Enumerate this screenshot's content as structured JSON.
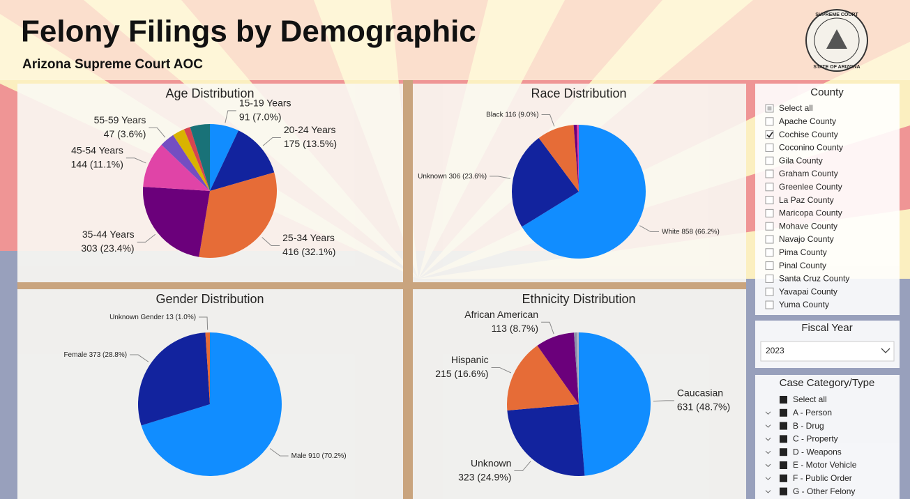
{
  "header": {
    "title": "Felony Filings by Demographic",
    "subtitle": "Arizona Supreme Court AOC",
    "seal_top": "SUPREME COURT",
    "seal_bottom": "STATE OF ARIZONA"
  },
  "chart_data": [
    {
      "type": "pie",
      "title": "Age Distribution",
      "categories": [
        "15-19 Years",
        "20-24 Years",
        "25-34 Years",
        "35-44 Years",
        "45-54 Years",
        "55-59 Years",
        null,
        null,
        null
      ],
      "values": [
        91,
        175,
        416,
        303,
        144,
        47,
        38,
        20,
        62
      ],
      "value_labels": [
        "91 (7.0%)",
        "175 (13.5%)",
        "416 (32.1%)",
        "303 (23.4%)",
        "144 (11.1%)",
        "47 (3.6%)",
        null,
        null,
        null
      ],
      "colors": [
        "#118DFF",
        "#12239E",
        "#E66C37",
        "#6B007B",
        "#E044A7",
        "#744EC2",
        "#D9B300",
        "#D64550",
        "#197278"
      ]
    },
    {
      "type": "pie",
      "title": "Race Distribution",
      "categories": [
        "White",
        "Unknown",
        "Black",
        null,
        null
      ],
      "values": [
        858,
        306,
        116,
        10,
        6
      ],
      "value_labels": [
        "858 (66.2%)",
        "306 (23.6%)",
        "116 (9.0%)",
        null,
        null
      ],
      "colors": [
        "#118DFF",
        "#12239E",
        "#E66C37",
        "#6B007B",
        "#E044A7"
      ]
    },
    {
      "type": "pie",
      "title": "Gender Distribution",
      "categories": [
        "Male",
        "Female",
        "Unknown Gender"
      ],
      "values": [
        910,
        373,
        13
      ],
      "value_labels": [
        "910 (70.2%)",
        "373 (28.8%)",
        "13 (1.0%)"
      ],
      "colors": [
        "#118DFF",
        "#12239E",
        "#E66C37"
      ]
    },
    {
      "type": "pie",
      "title": "Ethnicity Distribution",
      "categories": [
        "Caucasian",
        "Unknown",
        "Hispanic",
        "African American",
        null,
        null
      ],
      "values": [
        631,
        323,
        215,
        113,
        8,
        6
      ],
      "value_labels": [
        "631 (48.7%)",
        "323 (24.9%)",
        "215 (16.6%)",
        "113 (8.7%)",
        null,
        null
      ],
      "colors": [
        "#118DFF",
        "#12239E",
        "#E66C37",
        "#6B007B",
        "#8a8fa8",
        "#b0b4c4"
      ]
    }
  ],
  "slicers": {
    "county": {
      "title": "County",
      "items": [
        {
          "label": "Select all",
          "checked": false,
          "partial": true
        },
        {
          "label": "Apache County",
          "checked": false
        },
        {
          "label": "Cochise County",
          "checked": true
        },
        {
          "label": "Coconino County",
          "checked": false
        },
        {
          "label": "Gila County",
          "checked": false
        },
        {
          "label": "Graham County",
          "checked": false
        },
        {
          "label": "Greenlee County",
          "checked": false
        },
        {
          "label": "La Paz County",
          "checked": false
        },
        {
          "label": "Maricopa County",
          "checked": false
        },
        {
          "label": "Mohave County",
          "checked": false
        },
        {
          "label": "Navajo County",
          "checked": false
        },
        {
          "label": "Pima County",
          "checked": false
        },
        {
          "label": "Pinal County",
          "checked": false
        },
        {
          "label": "Santa Cruz County",
          "checked": false
        },
        {
          "label": "Yavapai County",
          "checked": false
        },
        {
          "label": "Yuma County",
          "checked": false
        }
      ]
    },
    "fiscal_year": {
      "title": "Fiscal Year",
      "selected": "2023"
    },
    "case_category": {
      "title": "Case Category/Type",
      "items": [
        {
          "label": "Select all",
          "expandable": false
        },
        {
          "label": "A - Person",
          "expandable": true
        },
        {
          "label": "B - Drug",
          "expandable": true
        },
        {
          "label": "C - Property",
          "expandable": true
        },
        {
          "label": "D - Weapons",
          "expandable": true
        },
        {
          "label": "E - Motor Vehicle",
          "expandable": true
        },
        {
          "label": "F - Public Order",
          "expandable": true
        },
        {
          "label": "G - Other Felony",
          "expandable": true
        }
      ]
    }
  }
}
